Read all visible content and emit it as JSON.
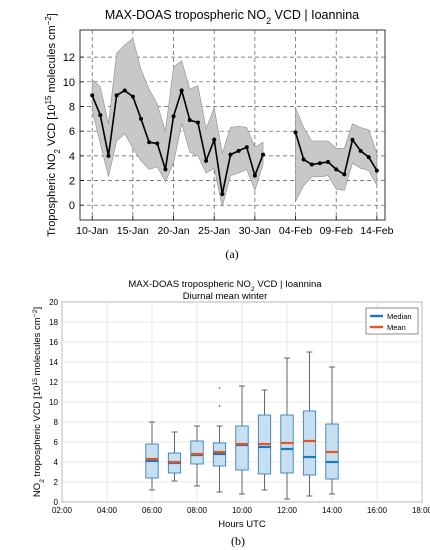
{
  "chart_data": [
    {
      "type": "line",
      "title": "MAX-DOAS tropospheric NO₂ VCD | Ioannina",
      "title_parts": [
        "MAX-DOAS tropospheric NO",
        "2",
        " VCD | Ioannina"
      ],
      "ylabel_parts": [
        "Tropospheric NO",
        "2",
        " VCD [10",
        "15",
        " molecules cm",
        "−2",
        "]"
      ],
      "xlabel": "",
      "panel_label": "(a)",
      "x_ticks": [
        "10-Jan",
        "15-Jan",
        "20-Jan",
        "25-Jan",
        "30-Jan",
        "04-Feb",
        "09-Feb",
        "14-Feb"
      ],
      "x_tick_days": [
        10,
        15,
        20,
        25,
        30,
        35,
        40,
        45
      ],
      "x_unit": "day of year (Jan = 1..31, Feb = 32..)",
      "xlim": [
        8.5,
        46
      ],
      "y_ticks": [
        "0",
        "2",
        "4",
        "6",
        "8",
        "10",
        "12"
      ],
      "ylim": [
        -1.2,
        14.2
      ],
      "grid": true,
      "line_color": "#000000",
      "band_color": "#c8c8c8",
      "segments": [
        {
          "x": [
            10,
            11,
            12,
            13,
            14,
            15,
            16,
            17,
            18,
            19,
            20,
            21,
            22,
            23,
            24,
            25,
            26,
            27,
            28,
            29,
            30,
            31
          ],
          "y": [
            8.9,
            7.3,
            4.0,
            8.9,
            9.3,
            8.8,
            7.0,
            5.1,
            5.0,
            2.9,
            7.2,
            9.3,
            6.9,
            6.7,
            3.6,
            5.3,
            0.9,
            4.1,
            4.4,
            4.7,
            2.4,
            4.1
          ],
          "upper": [
            10.2,
            9.6,
            6.6,
            12.3,
            13.0,
            13.5,
            11.0,
            9.4,
            8.2,
            6.0,
            11.2,
            11.7,
            9.4,
            9.7,
            6.2,
            7.9,
            4.2,
            6.3,
            6.4,
            6.3,
            4.7,
            5.1
          ],
          "lower": [
            7.7,
            5.0,
            2.3,
            5.2,
            5.8,
            4.6,
            3.6,
            2.9,
            3.1,
            1.9,
            3.4,
            6.6,
            4.3,
            4.0,
            2.6,
            3.0,
            -0.1,
            2.4,
            2.6,
            2.9,
            1.2,
            3.3
          ]
        },
        {
          "x": [
            35,
            36,
            37,
            38,
            39,
            40,
            41,
            42,
            43,
            44,
            45
          ],
          "y": [
            5.9,
            3.7,
            3.3,
            3.4,
            3.5,
            2.9,
            2.5,
            5.3,
            4.4,
            3.9,
            2.8
          ],
          "upper": [
            7.9,
            6.3,
            5.2,
            5.2,
            5.2,
            4.6,
            4.6,
            6.6,
            6.3,
            6.1,
            4.2
          ],
          "lower": [
            0.3,
            1.6,
            2.3,
            2.3,
            2.4,
            1.3,
            1.2,
            3.4,
            3.0,
            2.8,
            1.6
          ]
        }
      ]
    },
    {
      "type": "box",
      "title": "MAX-DOAS tropospheric NO₂ VCD | Ioannina",
      "title_parts": [
        "MAX-DOAS tropospheric NO",
        "2",
        " VCD | Ioannina"
      ],
      "subtitle": "Diurnal mean winter",
      "ylabel_parts": [
        "NO",
        "2",
        " tropospheric VCD [10",
        "15",
        " molecules cm",
        "−2",
        "]"
      ],
      "xlabel": "Hours UTC",
      "panel_label": "(b)",
      "x_ticks": [
        "02:00",
        "04:00",
        "06:00",
        "08:00",
        "10:00",
        "12:00",
        "14:00",
        "16:00",
        "18:00"
      ],
      "x_tick_hours": [
        2,
        4,
        6,
        8,
        10,
        12,
        14,
        16,
        18
      ],
      "xlim": [
        2,
        18
      ],
      "y_ticks": [
        "0",
        "2",
        "4",
        "6",
        "8",
        "10",
        "12",
        "14",
        "16",
        "18",
        "20"
      ],
      "ylim": [
        0,
        20
      ],
      "grid": true,
      "legend": {
        "placement": "top-right",
        "entries": [
          {
            "name": "Median",
            "color": "#1f77b4"
          },
          {
            "name": "Mean",
            "color": "#e8531f"
          }
        ]
      },
      "box_fill": "#c6e0f2",
      "box_edge": "#1f77b4",
      "whisker_color": "#555555",
      "outlier_color": "#2a8a66",
      "boxes": [
        {
          "hour": 6,
          "whisker_low": 1.2,
          "q1": 2.4,
          "median": 4.1,
          "mean": 4.3,
          "q3": 5.8,
          "whisker_high": 8.0
        },
        {
          "hour": 7,
          "whisker_low": 2.1,
          "q1": 2.9,
          "median": 3.9,
          "mean": 4.0,
          "q3": 4.9,
          "whisker_high": 7.0
        },
        {
          "hour": 8,
          "whisker_low": 1.6,
          "q1": 3.8,
          "median": 4.7,
          "mean": 4.8,
          "q3": 6.1,
          "whisker_high": 7.6
        },
        {
          "hour": 9,
          "whisker_low": 1.0,
          "q1": 3.6,
          "median": 4.8,
          "mean": 5.0,
          "q3": 5.9,
          "whisker_high": 7.6,
          "outliers": [
            9.6,
            11.4
          ]
        },
        {
          "hour": 10,
          "whisker_low": 0.8,
          "q1": 3.2,
          "median": 5.7,
          "mean": 5.8,
          "q3": 7.6,
          "whisker_high": 11.6
        },
        {
          "hour": 11,
          "whisker_low": 1.2,
          "q1": 2.8,
          "median": 5.5,
          "mean": 5.8,
          "q3": 8.7,
          "whisker_high": 11.2
        },
        {
          "hour": 12,
          "whisker_low": 0.3,
          "q1": 2.9,
          "median": 5.3,
          "mean": 5.9,
          "q3": 8.7,
          "whisker_high": 14.4
        },
        {
          "hour": 13,
          "whisker_low": 0.6,
          "q1": 2.7,
          "median": 4.5,
          "mean": 6.1,
          "q3": 9.1,
          "whisker_high": 15.0
        },
        {
          "hour": 14,
          "whisker_low": 0.8,
          "q1": 2.3,
          "median": 4.0,
          "mean": 5.0,
          "q3": 7.8,
          "whisker_high": 13.5
        }
      ]
    }
  ]
}
